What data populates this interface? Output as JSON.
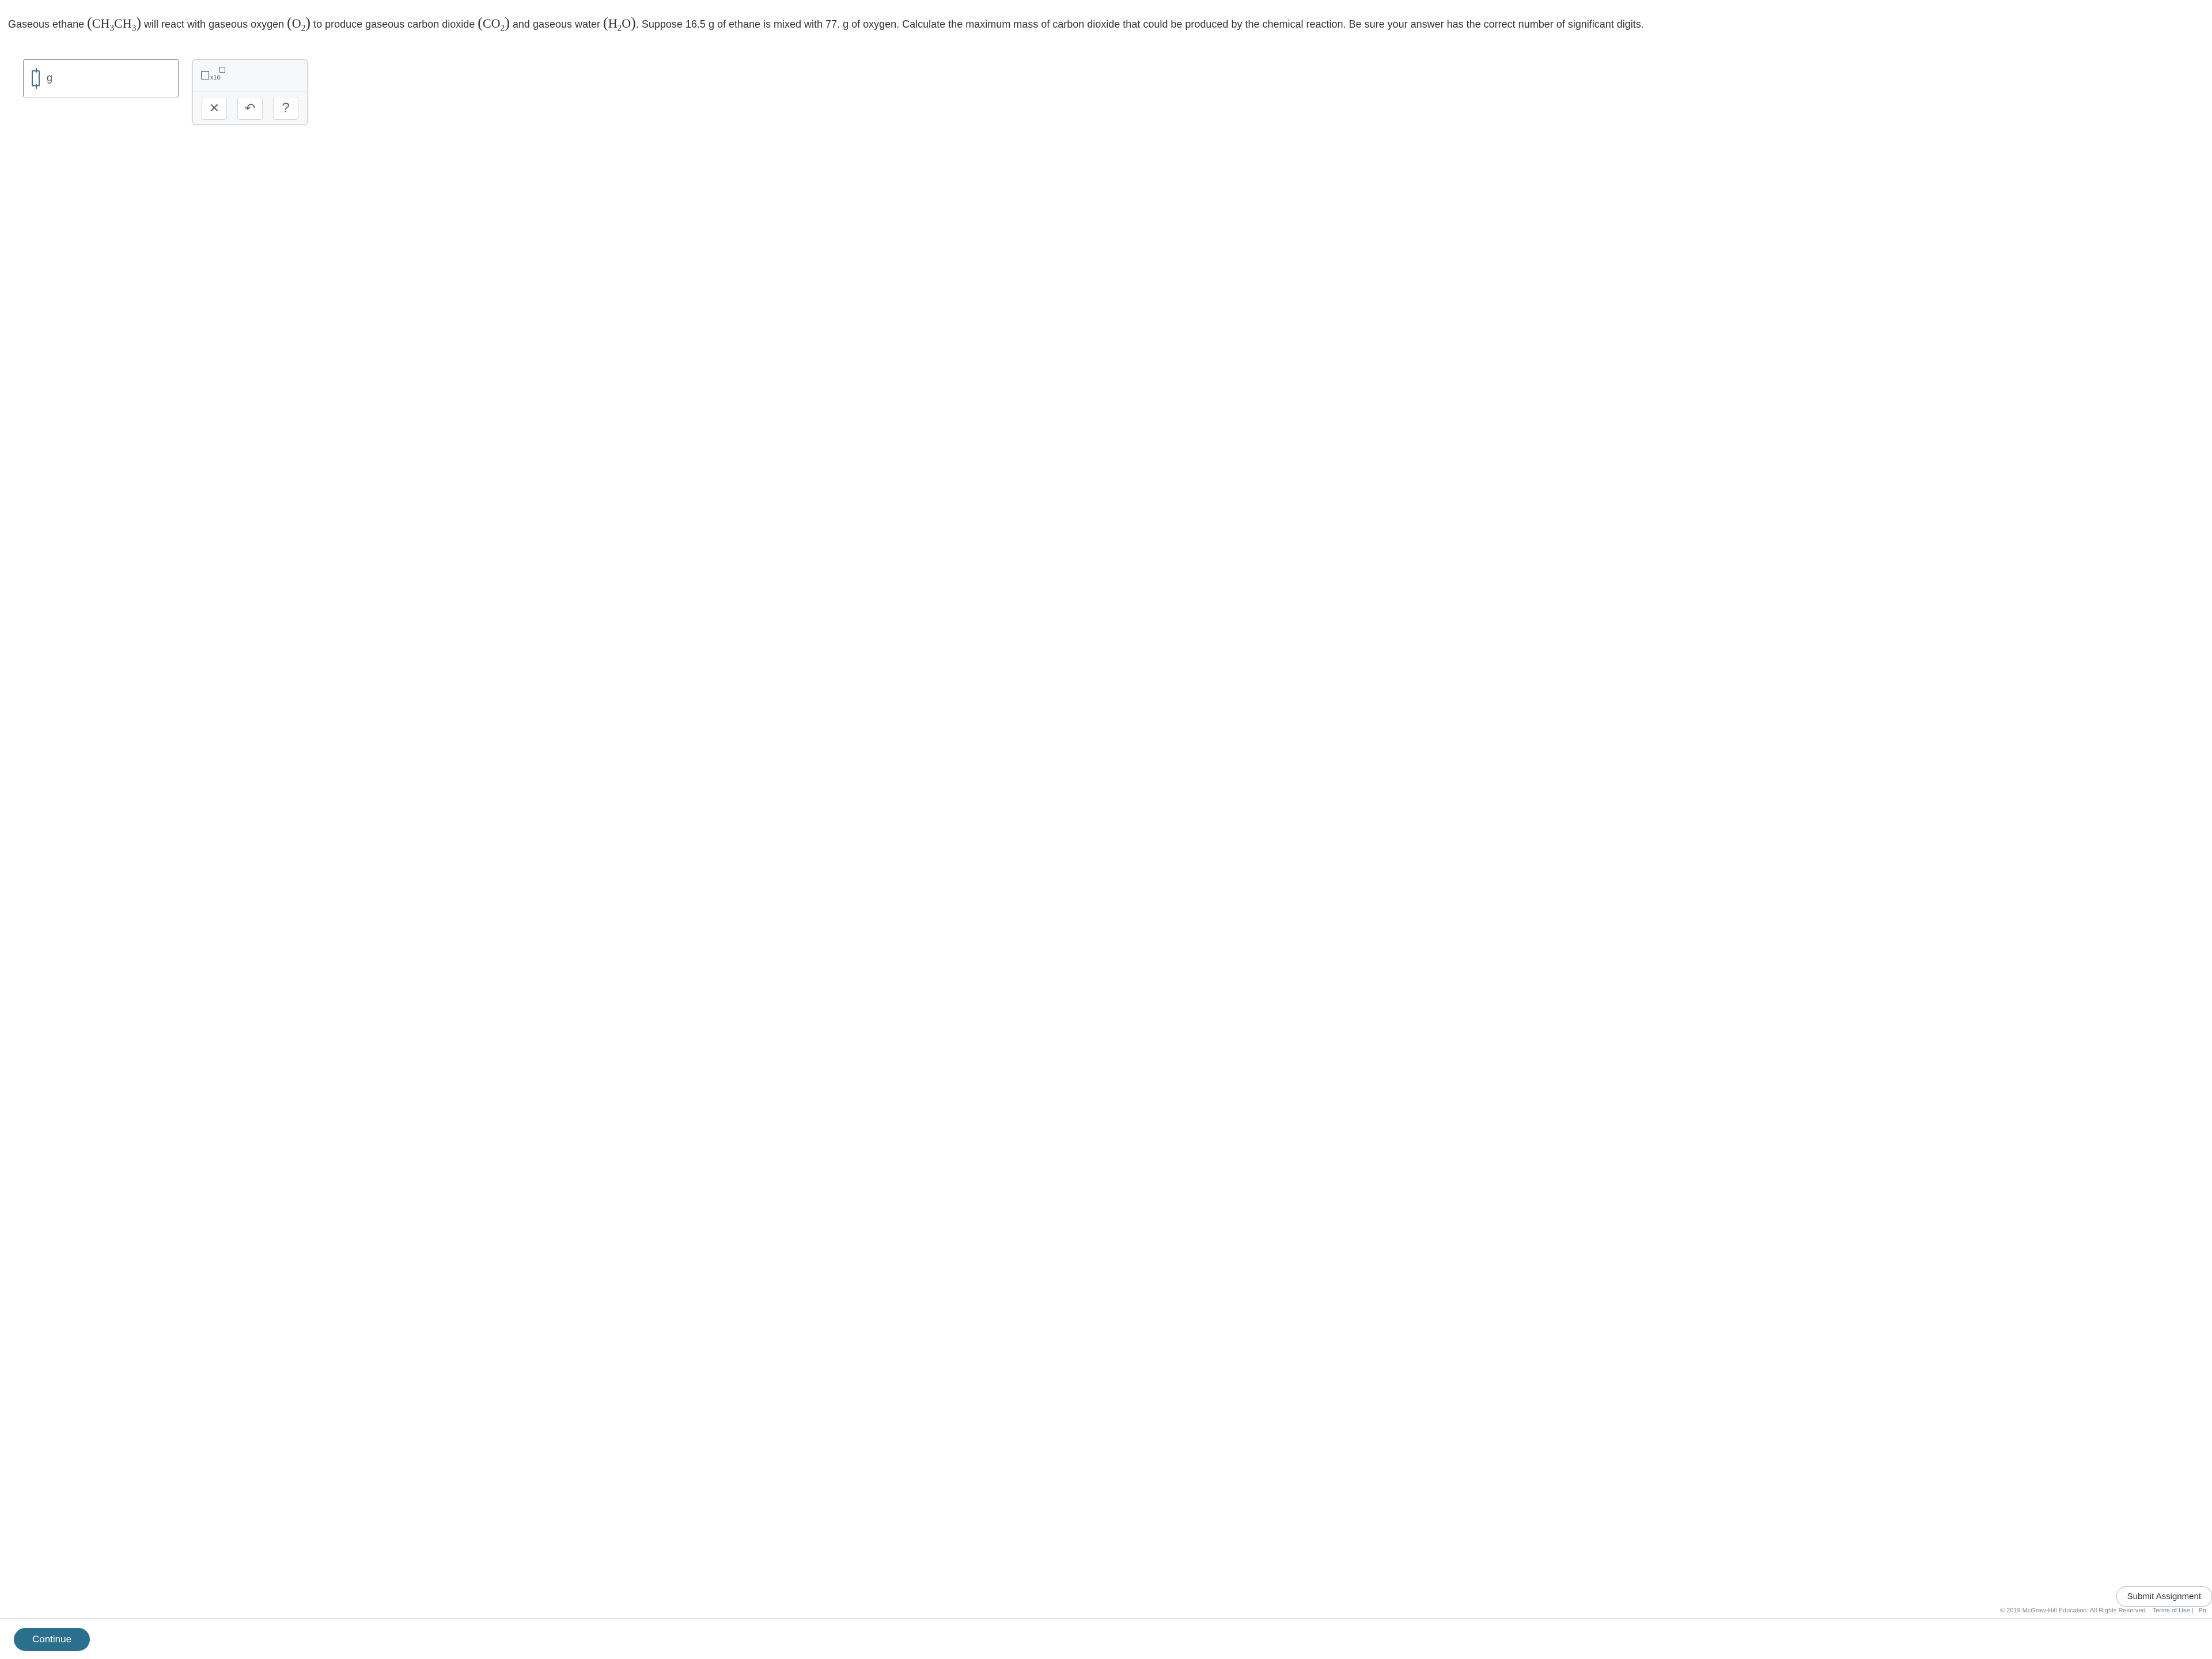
{
  "question": {
    "prefix": "Gaseous ethane ",
    "f1_base": "CH",
    "f1_s1": "3",
    "f1_mid": "CH",
    "f1_s2": "3",
    "mid1": " will react with gaseous oxygen ",
    "f2_base": "O",
    "f2_s1": "2",
    "mid2": " to produce gaseous carbon dioxide ",
    "f3_base": "CO",
    "f3_s1": "2",
    "mid3": " and gaseous water ",
    "f4_base": "H",
    "f4_s1": "2",
    "f4_mid": "O",
    "tail1": ". Suppose 16.5 g of ethane is mixed with 77. g of oxygen. Calculate the maximum mass of carbon dioxide that could be produced by the chemical reaction. Be sure your answer has the correct number of significant digits."
  },
  "answer": {
    "unit": "g",
    "sci_label": "x10"
  },
  "toolbar": {
    "clear": "✕",
    "undo": "↶",
    "help": "?"
  },
  "footer": {
    "continue": "Continue",
    "submit": "Submit Assignment",
    "copyright": "© 2019 McGraw-Hill Education. All Rights Reserved.",
    "terms": "Terms of Use",
    "privacy": "Pri"
  },
  "colors": {
    "primary_button": "#2b6f8e",
    "text": "#333333",
    "panel_bg": "#f7f8f9",
    "link": "#5a7a99"
  }
}
